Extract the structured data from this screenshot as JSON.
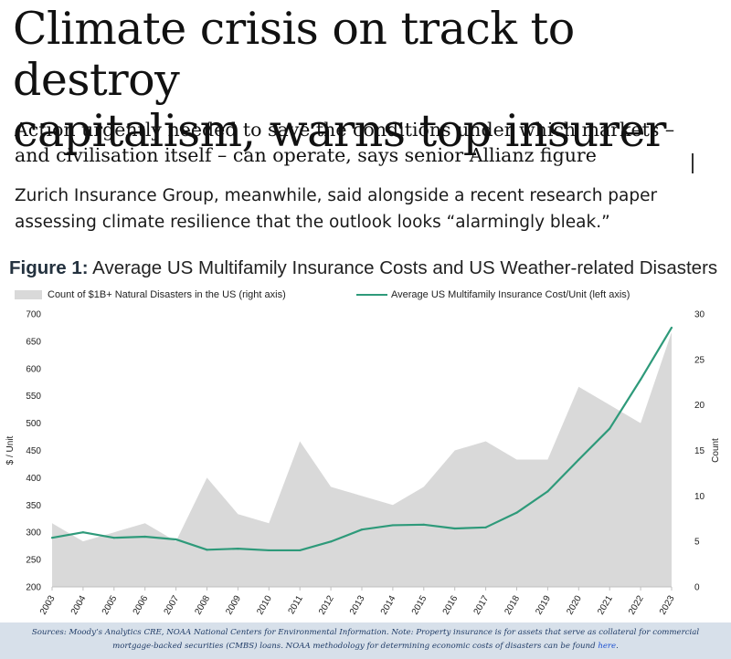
{
  "article": {
    "headline_line1": "Climate crisis on track to destroy",
    "headline_line2": "capitalism, warns top insurer",
    "standfirst_line1": "Action urgently needed to save the conditions under which markets –",
    "standfirst_line2": "and civilisation itself – can operate, says senior Allianz figure",
    "zurich_line1": "Zurich Insurance Group, meanwhile, said alongside a recent research paper",
    "zurich_line2": "assessing climate resilience that the outlook looks “alarmingly bleak.”"
  },
  "figure": {
    "label": "Figure 1:",
    "title_rest": " Average US Multifamily Insurance Costs and US Weather-related Disasters",
    "legend_area": "Count of $1B+ Natural Disasters in the US (right axis)",
    "legend_line": "Average US Multifamily Insurance Cost/Unit (left axis)",
    "sources_line1": "Sources: Moody’s Analytics CRE, NOAA National Centers for Environmental Information. Note: Property insurance is for assets that serve as collateral for commercial",
    "sources_line2": "mortgage-backed securities (CMBS) loans. NOAA methodology for determining economic costs of disasters can be found ",
    "sources_link": "here",
    "sources_end": "."
  },
  "chart_data": {
    "type": "line",
    "categories": [
      "2003",
      "2004",
      "2005",
      "2006",
      "2007",
      "2008",
      "2009",
      "2010",
      "2011",
      "2012",
      "2013",
      "2014",
      "2015",
      "2016",
      "2017",
      "2018",
      "2019",
      "2020",
      "2021",
      "2022",
      "2023"
    ],
    "series": [
      {
        "name": "Count of $1B+ Natural Disasters in the US (right axis)",
        "kind": "area",
        "axis": "right",
        "color": "#d9d9d9",
        "values": [
          7,
          5,
          6,
          7,
          5,
          12,
          8,
          7,
          16,
          11,
          10,
          9,
          11,
          15,
          16,
          14,
          14,
          22,
          20,
          18,
          28
        ]
      },
      {
        "name": "Average US Multifamily Insurance Cost/Unit (left axis)",
        "kind": "line",
        "axis": "left",
        "color": "#2e9a7a",
        "values": [
          290,
          300,
          290,
          292,
          287,
          268,
          270,
          267,
          267,
          283,
          305,
          313,
          314,
          307,
          309,
          336,
          375,
          433,
          490,
          580,
          675
        ]
      }
    ],
    "left_axis": {
      "label": "$ / Unit",
      "min": 200,
      "max": 700,
      "ticks": [
        200,
        250,
        300,
        350,
        400,
        450,
        500,
        550,
        600,
        650,
        700
      ]
    },
    "right_axis": {
      "label": "Count",
      "min": 0,
      "max": 30,
      "ticks": [
        0,
        5,
        10,
        15,
        20,
        25,
        30
      ]
    },
    "grid": false
  }
}
